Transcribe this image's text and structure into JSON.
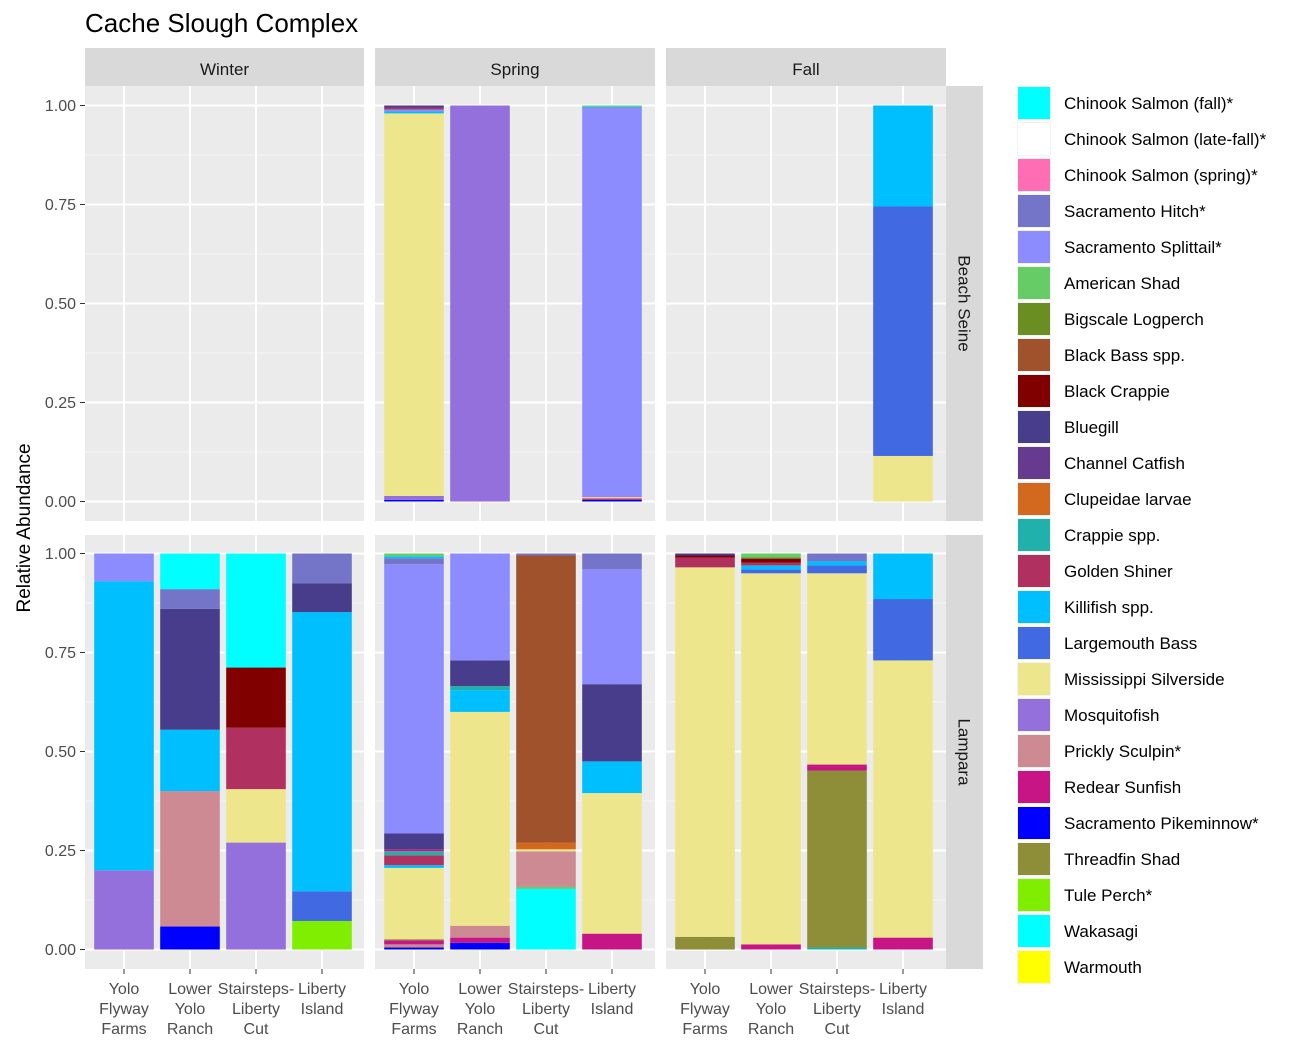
{
  "chart_data": {
    "type": "bar",
    "stacked": true,
    "title": "Cache Slough Complex",
    "ylabel": "Relative Abundance",
    "xlabel": "",
    "ylim": [
      0,
      1
    ],
    "y_ticks": [
      "0.00",
      "0.25",
      "0.50",
      "0.75",
      "1.00"
    ],
    "grid": true,
    "legend_position": "right",
    "column_facets": [
      "Winter",
      "Spring",
      "Fall"
    ],
    "row_facets": [
      "Beach Seine",
      "Lampara"
    ],
    "categories": [
      [
        "Yolo",
        "Flyway",
        "Farms"
      ],
      [
        "Lower",
        "Yolo",
        "Ranch"
      ],
      [
        "Stairsteps-",
        "Liberty",
        "Cut"
      ],
      [
        "Liberty",
        "Island"
      ]
    ],
    "legend": [
      {
        "name": "Chinook Salmon (fall)*",
        "color": "#00FFFF"
      },
      {
        "name": "Chinook Salmon (late-fall)*",
        "color": "#FFFFFF"
      },
      {
        "name": "Chinook Salmon (spring)*",
        "color": "#FF6EB4"
      },
      {
        "name": "Sacramento Hitch*",
        "color": "#7474C8"
      },
      {
        "name": "Sacramento Splittail*",
        "color": "#8C8CFF"
      },
      {
        "name": "American Shad",
        "color": "#66CD66"
      },
      {
        "name": "Bigscale Logperch",
        "color": "#6B8E23"
      },
      {
        "name": "Black Bass spp.",
        "color": "#A0522D"
      },
      {
        "name": "Black Crappie",
        "color": "#800000"
      },
      {
        "name": "Bluegill",
        "color": "#483D8B"
      },
      {
        "name": "Channel Catfish",
        "color": "#663A8E"
      },
      {
        "name": "Clupeidae larvae",
        "color": "#D2691E"
      },
      {
        "name": "Crappie spp.",
        "color": "#20B2AA"
      },
      {
        "name": "Golden Shiner",
        "color": "#B03060"
      },
      {
        "name": "Killifish spp.",
        "color": "#00BFFF"
      },
      {
        "name": "Largemouth Bass",
        "color": "#4169E1"
      },
      {
        "name": "Mississippi Silverside",
        "color": "#EEE68C"
      },
      {
        "name": "Mosquitofish",
        "color": "#9370DB"
      },
      {
        "name": "Prickly Sculpin*",
        "color": "#CD8A93"
      },
      {
        "name": "Redear Sunfish",
        "color": "#C71585"
      },
      {
        "name": "Sacramento Pikeminnow*",
        "color": "#0000FF"
      },
      {
        "name": "Threadfin Shad",
        "color": "#8E8E38"
      },
      {
        "name": "Tule Perch*",
        "color": "#7FEE00"
      },
      {
        "name": "Wakasagi",
        "color": "#00FFFF"
      },
      {
        "name": "Warmouth",
        "color": "#FFFF00"
      }
    ],
    "panels": [
      {
        "row": "Beach Seine",
        "col": "Winter",
        "bars": [
          [],
          [],
          [],
          []
        ]
      },
      {
        "row": "Beach Seine",
        "col": "Spring",
        "bars": [
          [
            {
              "s": "Sacramento Pikeminnow*",
              "v": 0.004
            },
            {
              "s": "Mosquitofish",
              "v": 0.01
            },
            {
              "s": "Mississippi Silverside",
              "v": 0.966
            },
            {
              "s": "Killifish spp.",
              "v": 0.005
            },
            {
              "s": "Sacramento Splittail*",
              "v": 0.005
            },
            {
              "s": "Golden Shiner",
              "v": 0.005
            },
            {
              "s": "Bluegill",
              "v": 0.005
            }
          ],
          [
            {
              "s": "Mosquitofish",
              "v": 1.0
            }
          ],
          [],
          [
            {
              "s": "Sacramento Pikeminnow*",
              "v": 0.004
            },
            {
              "s": "Golden Shiner",
              "v": 0.004
            },
            {
              "s": "Mississippi Silverside",
              "v": 0.003
            },
            {
              "s": "Mosquitofish",
              "v": 0.002
            },
            {
              "s": "Sacramento Splittail*",
              "v": 0.982
            },
            {
              "s": "Killifish spp.",
              "v": 0.002
            },
            {
              "s": "American Shad",
              "v": 0.003
            }
          ]
        ]
      },
      {
        "row": "Beach Seine",
        "col": "Fall",
        "bars": [
          [],
          [],
          [],
          [
            {
              "s": "Mississippi Silverside",
              "v": 0.115
            },
            {
              "s": "Largemouth Bass",
              "v": 0.63
            },
            {
              "s": "Killifish spp.",
              "v": 0.255
            }
          ]
        ]
      },
      {
        "row": "Lampara",
        "col": "Winter",
        "bars": [
          [
            {
              "s": "Mosquitofish",
              "v": 0.2
            },
            {
              "s": "Killifish spp.",
              "v": 0.73
            },
            {
              "s": "Sacramento Splittail*",
              "v": 0.07
            }
          ],
          [
            {
              "s": "Sacramento Pikeminnow*",
              "v": 0.058
            },
            {
              "s": "Prickly Sculpin*",
              "v": 0.342
            },
            {
              "s": "Killifish spp.",
              "v": 0.155
            },
            {
              "s": "Bluegill",
              "v": 0.305
            },
            {
              "s": "Sacramento Hitch*",
              "v": 0.05
            },
            {
              "s": "Wakasagi",
              "v": 0.09
            }
          ],
          [
            {
              "s": "Mosquitofish",
              "v": 0.27
            },
            {
              "s": "Mississippi Silverside",
              "v": 0.135
            },
            {
              "s": "Golden Shiner",
              "v": 0.155
            },
            {
              "s": "Black Crappie",
              "v": 0.152
            },
            {
              "s": "Wakasagi",
              "v": 0.288
            }
          ],
          [
            {
              "s": "Tule Perch*",
              "v": 0.072
            },
            {
              "s": "Largemouth Bass",
              "v": 0.075
            },
            {
              "s": "Killifish spp.",
              "v": 0.705
            },
            {
              "s": "Bluegill",
              "v": 0.073
            },
            {
              "s": "Sacramento Hitch*",
              "v": 0.075
            }
          ]
        ]
      },
      {
        "row": "Lampara",
        "col": "Spring",
        "bars": [
          [
            {
              "s": "Sacramento Pikeminnow*",
              "v": 0.005
            },
            {
              "s": "Prickly Sculpin*",
              "v": 0.008
            },
            {
              "s": "Redear Sunfish",
              "v": 0.01
            },
            {
              "s": "Threadfin Shad",
              "v": 0.003
            },
            {
              "s": "Mississippi Silverside",
              "v": 0.18
            },
            {
              "s": "Killifish spp.",
              "v": 0.007
            },
            {
              "s": "Golden Shiner",
              "v": 0.025
            },
            {
              "s": "Crappie spp.",
              "v": 0.01
            },
            {
              "s": "Redear Sunfish",
              "v": 0.005
            },
            {
              "s": "Bluegill",
              "v": 0.04
            },
            {
              "s": "Sacramento Splittail*",
              "v": 0.68
            },
            {
              "s": "Sacramento Hitch*",
              "v": 0.015
            },
            {
              "s": "Killifish spp.",
              "v": 0.005
            },
            {
              "s": "American Shad",
              "v": 0.007
            }
          ],
          [
            {
              "s": "Sacramento Pikeminnow*",
              "v": 0.017
            },
            {
              "s": "Redear Sunfish",
              "v": 0.013
            },
            {
              "s": "Prickly Sculpin*",
              "v": 0.03
            },
            {
              "s": "Mississippi Silverside",
              "v": 0.54
            },
            {
              "s": "Killifish spp.",
              "v": 0.055
            },
            {
              "s": "Crappie spp.",
              "v": 0.01
            },
            {
              "s": "Bluegill",
              "v": 0.065
            },
            {
              "s": "Sacramento Splittail*",
              "v": 0.27
            }
          ],
          [
            {
              "s": "Wakasagi",
              "v": 0.153
            },
            {
              "s": "American Shad",
              "v": 0.005
            },
            {
              "s": "Prickly Sculpin*",
              "v": 0.09
            },
            {
              "s": "Mississippi Silverside",
              "v": 0.005
            },
            {
              "s": "Clupeidae larvae",
              "v": 0.017
            },
            {
              "s": "Black Bass spp.",
              "v": 0.725
            },
            {
              "s": "Sacramento Hitch*",
              "v": 0.005
            }
          ],
          [
            {
              "s": "Redear Sunfish",
              "v": 0.04
            },
            {
              "s": "Mississippi Silverside",
              "v": 0.355
            },
            {
              "s": "Killifish spp.",
              "v": 0.08
            },
            {
              "s": "Bluegill",
              "v": 0.195
            },
            {
              "s": "Sacramento Splittail*",
              "v": 0.29
            },
            {
              "s": "Sacramento Hitch*",
              "v": 0.04
            }
          ]
        ]
      },
      {
        "row": "Lampara",
        "col": "Fall",
        "bars": [
          [
            {
              "s": "Threadfin Shad",
              "v": 0.032
            },
            {
              "s": "Mississippi Silverside",
              "v": 0.933
            },
            {
              "s": "Golden Shiner",
              "v": 0.025
            },
            {
              "s": "Black Crappie",
              "v": 0.005
            },
            {
              "s": "Bluegill",
              "v": 0.005
            }
          ],
          [
            {
              "s": "Redear Sunfish",
              "v": 0.013
            },
            {
              "s": "Mississippi Silverside",
              "v": 0.937
            },
            {
              "s": "Largemouth Bass",
              "v": 0.01
            },
            {
              "s": "Killifish spp.",
              "v": 0.01
            },
            {
              "s": "Golden Shiner",
              "v": 0.007
            },
            {
              "s": "Black Crappie",
              "v": 0.01
            },
            {
              "s": "Bigscale Logperch",
              "v": 0.003
            },
            {
              "s": "American Shad",
              "v": 0.01
            }
          ],
          [
            {
              "s": "Crappie spp.",
              "v": 0.005
            },
            {
              "s": "Threadfin Shad",
              "v": 0.447
            },
            {
              "s": "Redear Sunfish",
              "v": 0.015
            },
            {
              "s": "Mississippi Silverside",
              "v": 0.483
            },
            {
              "s": "Largemouth Bass",
              "v": 0.02
            },
            {
              "s": "Killifish spp.",
              "v": 0.01
            },
            {
              "s": "Sacramento Hitch*",
              "v": 0.02
            }
          ],
          [
            {
              "s": "Redear Sunfish",
              "v": 0.03
            },
            {
              "s": "Mississippi Silverside",
              "v": 0.7
            },
            {
              "s": "Largemouth Bass",
              "v": 0.155
            },
            {
              "s": "Killifish spp.",
              "v": 0.115
            }
          ]
        ]
      }
    ]
  }
}
